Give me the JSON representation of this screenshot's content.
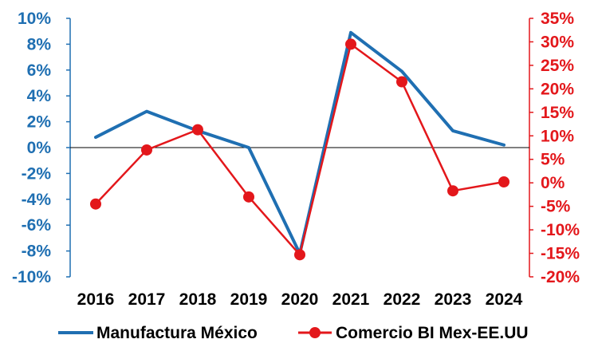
{
  "chart_data": {
    "type": "line",
    "categories": [
      "2016",
      "2017",
      "2018",
      "2019",
      "2020",
      "2021",
      "2022",
      "2023",
      "2024"
    ],
    "y_left": {
      "ylim": [
        -10,
        10
      ],
      "ticks": [
        10,
        8,
        6,
        4,
        2,
        0,
        -2,
        -4,
        -6,
        -8,
        -10
      ],
      "tick_labels": [
        "10%",
        "8%",
        "6%",
        "4%",
        "2%",
        "0%",
        "-2%",
        "-4%",
        "-6%",
        "-8%",
        "-10%"
      ],
      "color": "#1f6fb2"
    },
    "y_right": {
      "ylim": [
        -20,
        35
      ],
      "ticks": [
        35,
        30,
        25,
        20,
        15,
        10,
        5,
        0,
        -5,
        -10,
        -15,
        -20
      ],
      "tick_labels": [
        "35%",
        "30%",
        "25%",
        "20%",
        "15%",
        "10%",
        "5%",
        "0%",
        "-5%",
        "-10%",
        "-15%",
        "-20%"
      ],
      "color": "#e3171b"
    },
    "series": [
      {
        "name": "Manufactura México",
        "axis": "left",
        "color": "#1f6fb2",
        "marker": false,
        "values": [
          0.8,
          2.8,
          1.3,
          0.0,
          -8.2,
          8.9,
          5.9,
          1.3,
          0.2
        ]
      },
      {
        "name": "Comercio BI Mex-EE.UU",
        "axis": "right",
        "color": "#e3171b",
        "marker": true,
        "values": [
          -4.5,
          7.0,
          11.3,
          -3.0,
          -15.3,
          29.5,
          21.5,
          -1.7,
          0.2
        ]
      }
    ],
    "legend_position": "bottom",
    "grid": false
  }
}
